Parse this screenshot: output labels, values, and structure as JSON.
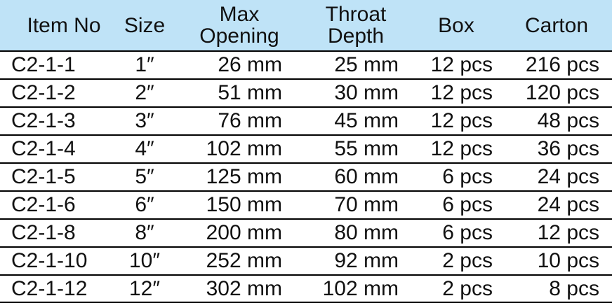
{
  "headers": {
    "item_no": "Item No",
    "size": "Size",
    "max_opening": [
      "Max",
      "Opening"
    ],
    "throat_depth": [
      "Throat",
      "Depth"
    ],
    "box": "Box",
    "carton": "Carton"
  },
  "rows": [
    {
      "item": "C2-1-1",
      "size": "1″",
      "opening": "26 mm",
      "throat": "25 mm",
      "box": "12 pcs",
      "carton": "216 pcs"
    },
    {
      "item": "C2-1-2",
      "size": "2″",
      "opening": "51 mm",
      "throat": "30 mm",
      "box": "12 pcs",
      "carton": "120 pcs"
    },
    {
      "item": "C2-1-3",
      "size": "3″",
      "opening": "76 mm",
      "throat": "45 mm",
      "box": "12 pcs",
      "carton": "48 pcs"
    },
    {
      "item": "C2-1-4",
      "size": "4″",
      "opening": "102 mm",
      "throat": "55 mm",
      "box": "12 pcs",
      "carton": "36 pcs"
    },
    {
      "item": "C2-1-5",
      "size": "5″",
      "opening": "125 mm",
      "throat": "60 mm",
      "box": "6 pcs",
      "carton": "24 pcs"
    },
    {
      "item": "C2-1-6",
      "size": "6″",
      "opening": "150 mm",
      "throat": "70 mm",
      "box": "6 pcs",
      "carton": "24 pcs"
    },
    {
      "item": "C2-1-8",
      "size": "8″",
      "opening": "200 mm",
      "throat": "80 mm",
      "box": "6 pcs",
      "carton": "12 pcs"
    },
    {
      "item": "C2-1-10",
      "size": "10″",
      "opening": "252 mm",
      "throat": "92 mm",
      "box": "2 pcs",
      "carton": "10 pcs"
    },
    {
      "item": "C2-1-12",
      "size": "12″",
      "opening": "302 mm",
      "throat": "102 mm",
      "box": "2 pcs",
      "carton": "8 pcs"
    }
  ],
  "colors": {
    "header_background": "#bfe3f7",
    "rule": "#000000",
    "text": "#111111"
  }
}
